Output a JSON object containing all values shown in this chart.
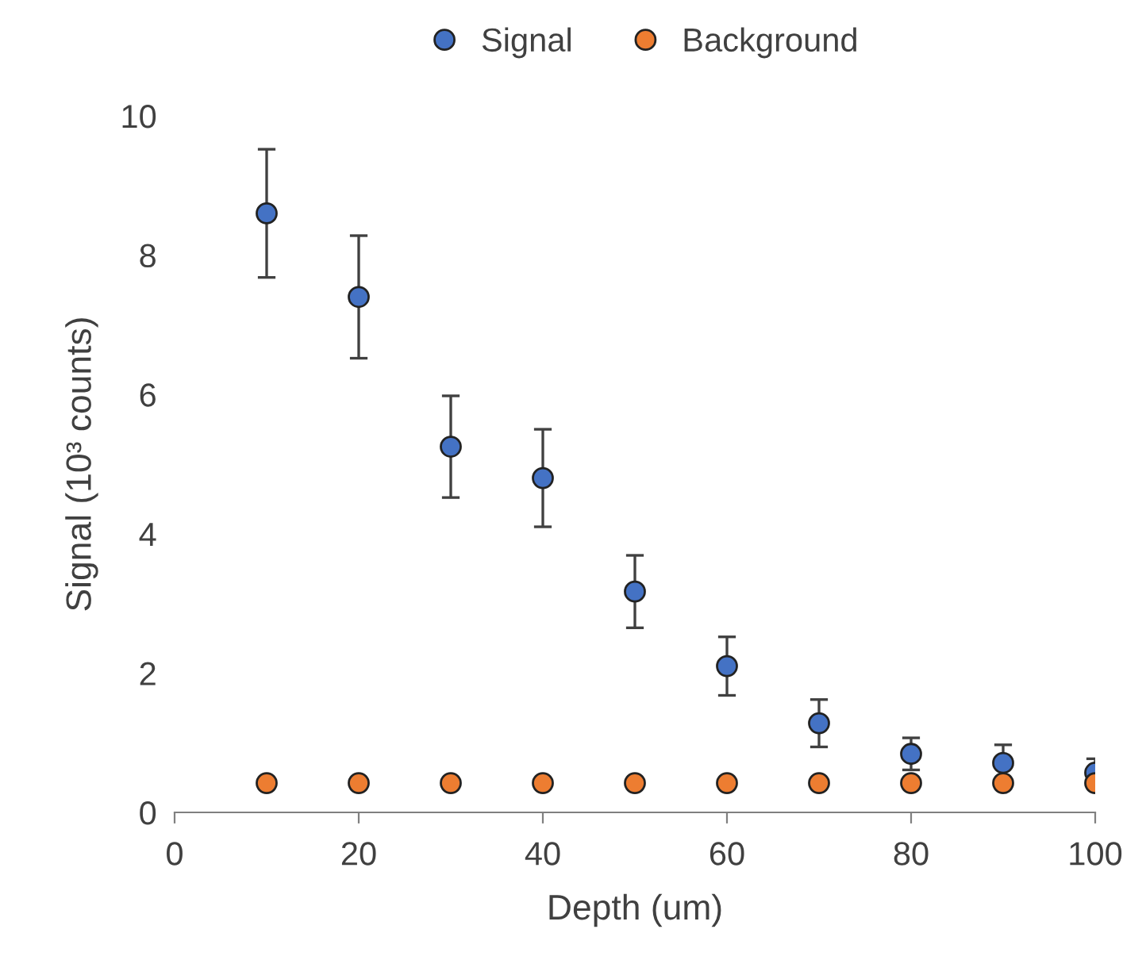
{
  "chart_data": {
    "type": "scatter",
    "xlabel": "Depth (um)",
    "ylabel": "Signal (10³ counts)",
    "x": [
      10,
      20,
      30,
      40,
      50,
      60,
      70,
      80,
      90,
      100
    ],
    "series": [
      {
        "name": "Signal",
        "color": "#4472c4",
        "values": [
          8.6,
          7.4,
          5.25,
          4.8,
          3.17,
          2.1,
          1.28,
          0.84,
          0.71,
          0.57
        ],
        "errors": [
          0.92,
          0.88,
          0.73,
          0.7,
          0.52,
          0.42,
          0.34,
          0.23,
          0.26,
          0.2
        ]
      },
      {
        "name": "Background",
        "color": "#ed7d31",
        "values": [
          0.42,
          0.42,
          0.42,
          0.42,
          0.42,
          0.42,
          0.42,
          0.42,
          0.42,
          0.42
        ]
      }
    ],
    "xlim": [
      0,
      100
    ],
    "xticks": [
      0,
      20,
      40,
      60,
      80,
      100
    ],
    "ylim": [
      0,
      10
    ],
    "yticks": [
      0,
      2,
      4,
      6,
      8,
      10
    ],
    "grid": false,
    "legend": "top",
    "marker": "circle"
  }
}
